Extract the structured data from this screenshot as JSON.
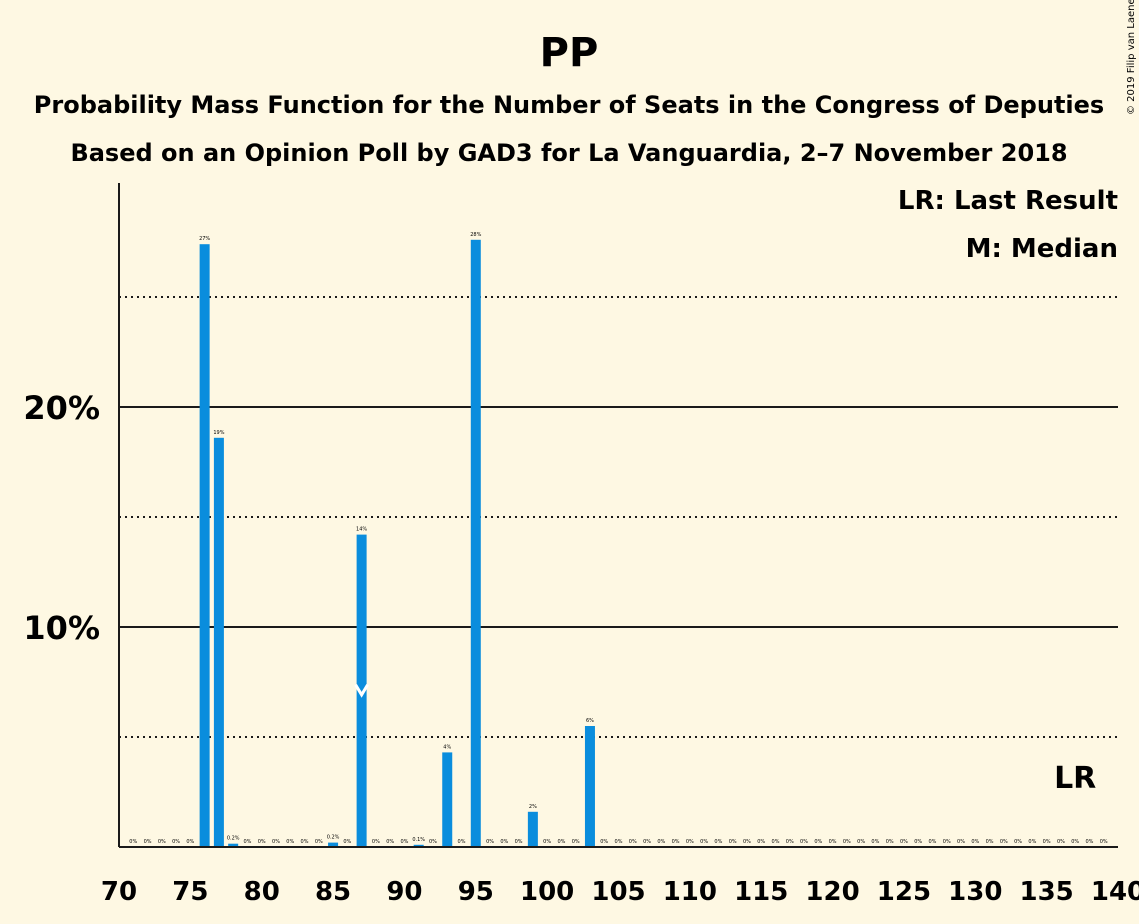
{
  "chart_data": {
    "type": "bar",
    "title": "PP",
    "subtitle": "Probability Mass Function for the Number of Seats in the Congress of Deputies",
    "subtitle2": "Based on an Opinion Poll by GAD3 for La Vanguardia, 2–7 November 2018",
    "copyright": "© 2019 Filip van Laenen",
    "xlabel": "",
    "ylabel": "",
    "xlim": [
      70,
      140
    ],
    "ylim": [
      0,
      30
    ],
    "x_ticks": [
      "70",
      "75",
      "80",
      "85",
      "90",
      "95",
      "100",
      "105",
      "110",
      "115",
      "120",
      "125",
      "130",
      "135",
      "140"
    ],
    "y_ticks": [
      {
        "value": 10,
        "label": "10%"
      },
      {
        "value": 20,
        "label": "20%"
      }
    ],
    "dotted_gridlines": [
      5,
      15,
      25
    ],
    "solid_gridlines": [
      10,
      20
    ],
    "bar_color": "#0a8ddd",
    "legend": {
      "position": "top-right",
      "last_result": "LR: Last Result",
      "median": "M: Median"
    },
    "last_result": {
      "seat": 137,
      "label": "LR"
    },
    "median": {
      "seat": 87,
      "label": "M"
    },
    "bars": [
      {
        "seat": 71,
        "value": 0,
        "label": "0%"
      },
      {
        "seat": 72,
        "value": 0,
        "label": "0%"
      },
      {
        "seat": 73,
        "value": 0,
        "label": "0%"
      },
      {
        "seat": 74,
        "value": 0,
        "label": "0%"
      },
      {
        "seat": 75,
        "value": 0,
        "label": "0%"
      },
      {
        "seat": 76,
        "value": 27.4,
        "label": "27%"
      },
      {
        "seat": 77,
        "value": 18.6,
        "label": "19%"
      },
      {
        "seat": 78,
        "value": 0.15,
        "label": "0.2%"
      },
      {
        "seat": 79,
        "value": 0,
        "label": "0%"
      },
      {
        "seat": 80,
        "value": 0,
        "label": "0%"
      },
      {
        "seat": 81,
        "value": 0,
        "label": "0%"
      },
      {
        "seat": 82,
        "value": 0,
        "label": "0%"
      },
      {
        "seat": 83,
        "value": 0,
        "label": "0%"
      },
      {
        "seat": 84,
        "value": 0,
        "label": "0%"
      },
      {
        "seat": 85,
        "value": 0.2,
        "label": "0.2%"
      },
      {
        "seat": 86,
        "value": 0,
        "label": "0%"
      },
      {
        "seat": 87,
        "value": 14.2,
        "label": "14%"
      },
      {
        "seat": 88,
        "value": 0,
        "label": "0%"
      },
      {
        "seat": 89,
        "value": 0,
        "label": "0%"
      },
      {
        "seat": 90,
        "value": 0,
        "label": "0%"
      },
      {
        "seat": 91,
        "value": 0.1,
        "label": "0.1%"
      },
      {
        "seat": 92,
        "value": 0,
        "label": "0%"
      },
      {
        "seat": 93,
        "value": 4.3,
        "label": "4%"
      },
      {
        "seat": 94,
        "value": 0,
        "label": "0%"
      },
      {
        "seat": 95,
        "value": 27.6,
        "label": "28%"
      },
      {
        "seat": 96,
        "value": 0,
        "label": "0%"
      },
      {
        "seat": 97,
        "value": 0,
        "label": "0%"
      },
      {
        "seat": 98,
        "value": 0,
        "label": "0%"
      },
      {
        "seat": 99,
        "value": 1.6,
        "label": "2%"
      },
      {
        "seat": 100,
        "value": 0,
        "label": "0%"
      },
      {
        "seat": 101,
        "value": 0,
        "label": "0%"
      },
      {
        "seat": 102,
        "value": 0,
        "label": "0%"
      },
      {
        "seat": 103,
        "value": 5.5,
        "label": "6%"
      },
      {
        "seat": 104,
        "value": 0,
        "label": "0%"
      },
      {
        "seat": 105,
        "value": 0,
        "label": "0%"
      },
      {
        "seat": 106,
        "value": 0,
        "label": "0%"
      },
      {
        "seat": 107,
        "value": 0,
        "label": "0%"
      },
      {
        "seat": 108,
        "value": 0,
        "label": "0%"
      },
      {
        "seat": 109,
        "value": 0,
        "label": "0%"
      },
      {
        "seat": 110,
        "value": 0,
        "label": "0%"
      },
      {
        "seat": 111,
        "value": 0,
        "label": "0%"
      },
      {
        "seat": 112,
        "value": 0,
        "label": "0%"
      },
      {
        "seat": 113,
        "value": 0,
        "label": "0%"
      },
      {
        "seat": 114,
        "value": 0,
        "label": "0%"
      },
      {
        "seat": 115,
        "value": 0,
        "label": "0%"
      },
      {
        "seat": 116,
        "value": 0,
        "label": "0%"
      },
      {
        "seat": 117,
        "value": 0,
        "label": "0%"
      },
      {
        "seat": 118,
        "value": 0,
        "label": "0%"
      },
      {
        "seat": 119,
        "value": 0,
        "label": "0%"
      },
      {
        "seat": 120,
        "value": 0,
        "label": "0%"
      },
      {
        "seat": 121,
        "value": 0,
        "label": "0%"
      },
      {
        "seat": 122,
        "value": 0,
        "label": "0%"
      },
      {
        "seat": 123,
        "value": 0,
        "label": "0%"
      },
      {
        "seat": 124,
        "value": 0,
        "label": "0%"
      },
      {
        "seat": 125,
        "value": 0,
        "label": "0%"
      },
      {
        "seat": 126,
        "value": 0,
        "label": "0%"
      },
      {
        "seat": 127,
        "value": 0,
        "label": "0%"
      },
      {
        "seat": 128,
        "value": 0,
        "label": "0%"
      },
      {
        "seat": 129,
        "value": 0,
        "label": "0%"
      },
      {
        "seat": 130,
        "value": 0,
        "label": "0%"
      },
      {
        "seat": 131,
        "value": 0,
        "label": "0%"
      },
      {
        "seat": 132,
        "value": 0,
        "label": "0%"
      },
      {
        "seat": 133,
        "value": 0,
        "label": "0%"
      },
      {
        "seat": 134,
        "value": 0,
        "label": "0%"
      },
      {
        "seat": 135,
        "value": 0,
        "label": "0%"
      },
      {
        "seat": 136,
        "value": 0,
        "label": "0%"
      },
      {
        "seat": 137,
        "value": 0,
        "label": "0%"
      },
      {
        "seat": 138,
        "value": 0,
        "label": "0%"
      },
      {
        "seat": 139,
        "value": 0,
        "label": "0%"
      }
    ]
  }
}
